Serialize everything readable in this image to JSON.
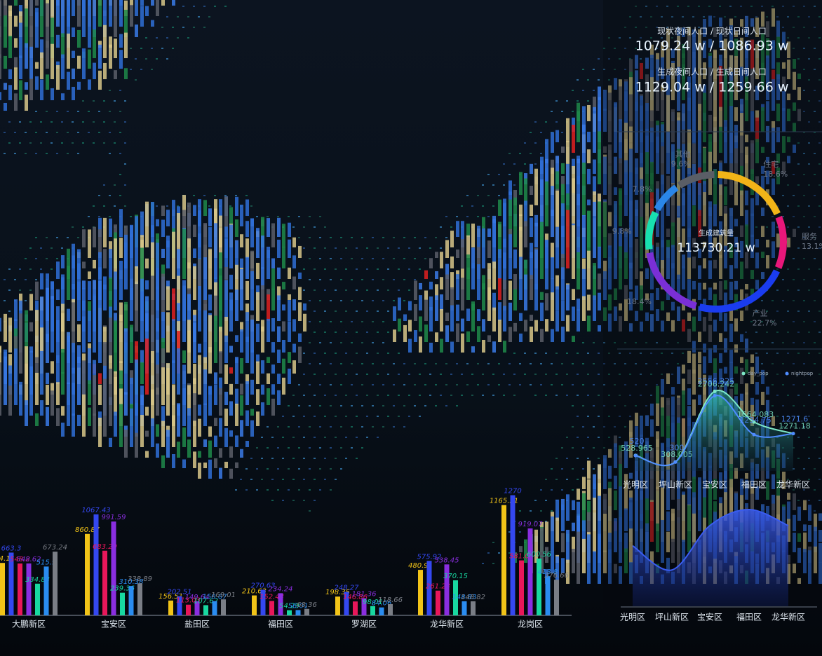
{
  "stats": [
    {
      "label": "现状夜间人口 / 现状日间人口",
      "value": "1079.24 w / 1086.93 w"
    },
    {
      "label": "生成夜间人口 / 生成日间人口",
      "value": "1129.04 w / 1259.66 w"
    }
  ],
  "chart_data": [
    {
      "type": "donut",
      "title": "生成建筑量",
      "total": "113730.21 w",
      "categories": [
        "住宅",
        "服务",
        "产业",
        null,
        null,
        null,
        "其他"
      ],
      "values": [
        18.6,
        13.1,
        22.7,
        18.4,
        9.8,
        7.8,
        9.6
      ],
      "value_labels": [
        "18.6%",
        "13.1%",
        "22.7%",
        "18.4%",
        "9.8%",
        "7.8%",
        "9.6%"
      ],
      "colors": [
        "#f2b418",
        "#e8177a",
        "#1a3cf0",
        "#7a2fd6",
        "#18e0b0",
        "#2a86e8",
        "#5a5e66"
      ]
    },
    {
      "type": "line",
      "categories": [
        "光明区",
        "坪山新区",
        "宝安区",
        "福田区",
        "龙华新区"
      ],
      "series": [
        {
          "name": "day_pop",
          "color": "#7ee8c8",
          "values": [
            528.965,
            308.005,
            2706.242,
            1664.083,
            1271.18
          ]
        },
        {
          "name": "nightpop",
          "color": "#4f8cff",
          "values": [
            520,
            300,
            2556.325,
            1234.75,
            1271.6
          ]
        }
      ]
    },
    {
      "type": "area",
      "categories": [
        "光明区",
        "坪山新区",
        "宝安区",
        "福田区",
        "龙华新区"
      ],
      "color": "#3a5cf0",
      "values": [
        75,
        45,
        100,
        120,
        100
      ]
    },
    {
      "type": "bar",
      "categories": [
        "大鹏新区",
        "宝安区",
        "盐田区",
        "福田区",
        "罗湖区",
        "龙华新区",
        "龙岗区"
      ],
      "series": [
        {
          "color": "#f2c418",
          "values": [
            554.11,
            860.87,
            156.51,
            210.63,
            198.35,
            480.91,
            1165.51
          ]
        },
        {
          "color": "#3448f0",
          "values": [
            663.3,
            1067.43,
            202.51,
            270.63,
            248.27,
            575.92,
            1270
          ]
        },
        {
          "color": "#e8175a",
          "values": [
            548.2,
            683.29,
            113.03,
            152.43,
            146.86,
            261.23,
            581.01
          ]
        },
        {
          "color": "#8a2ee0",
          "values": [
            548.62,
            991.59,
            149.64,
            234.24,
            181.36,
            538.45,
            919.07
          ]
        },
        {
          "color": "#18d8a0",
          "values": [
            334.83,
            239.36,
            107.62,
            54.29,
            98.01,
            370.15,
            600.56
          ]
        },
        {
          "color": "#2a8cf0",
          "values": [
            515.9,
            310.38,
            150.67,
            56.01,
            84.06,
            148.83,
            413.8
          ]
        },
        {
          "color": "#7a7e86",
          "values": [
            673.24,
            338.89,
            169.01,
            68.36,
            118.66,
            148.82,
            376.66
          ]
        }
      ]
    }
  ]
}
